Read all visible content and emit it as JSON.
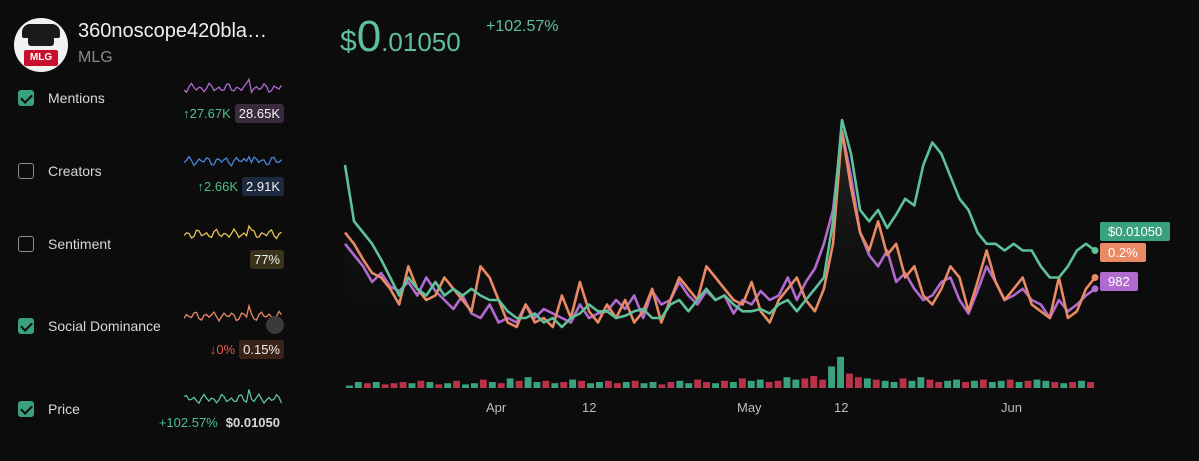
{
  "token": {
    "name": "360noscope420bla…",
    "ticker": "MLG",
    "logo_text": "MLG"
  },
  "price_header": {
    "dollar": "$",
    "int": "0",
    "frac": ".01050",
    "change": "+102.57%"
  },
  "metrics": [
    {
      "label": "Mentions",
      "checked": true,
      "change": "↑27.67K",
      "change_dir": "up",
      "value": "28.65K",
      "pill_color": "#3a2a3d",
      "spark_color": "#b06ad0"
    },
    {
      "label": "Creators",
      "checked": false,
      "change": "↑2.66K",
      "change_dir": "up",
      "value": "2.91K",
      "pill_color": "#1c2a3f",
      "spark_color": "#4a86d8"
    },
    {
      "label": "Sentiment",
      "checked": false,
      "change": "",
      "change_dir": "",
      "value": "77%",
      "pill_color": "#3a3219",
      "spark_color": "#e8c15a"
    },
    {
      "label": "Social Dominance",
      "checked": true,
      "change": "↓0%",
      "change_dir": "down",
      "value": "0.15%",
      "pill_color": "#3a2419",
      "spark_color": "#ea8a64"
    },
    {
      "label": "Price",
      "checked": true,
      "change": "+102.57%",
      "change_dir": "up",
      "value": "$0.01050",
      "pill_color": "transparent",
      "spark_color": "#5ec19a"
    }
  ],
  "chart_data": {
    "type": "line",
    "x_tick_labels": [
      "Apr",
      "12",
      "May",
      "12",
      "Jun"
    ],
    "series": [
      {
        "name": "Price",
        "color": "#5ec19a",
        "last_label": "$0.01050",
        "values": [
          0.8,
          0.55,
          0.5,
          0.45,
          0.38,
          0.3,
          0.22,
          0.3,
          0.25,
          0.22,
          0.28,
          0.22,
          0.25,
          0.22,
          0.25,
          0.22,
          0.2,
          0.2,
          0.15,
          0.12,
          0.12,
          0.14,
          0.1,
          0.12,
          0.08,
          0.12,
          0.14,
          0.18,
          0.15,
          0.15,
          0.12,
          0.13,
          0.15,
          0.16,
          0.12,
          0.12,
          0.18,
          0.2,
          0.15,
          0.2,
          0.25,
          0.2,
          0.22,
          0.18,
          0.15,
          0.15,
          0.16,
          0.14,
          0.18,
          0.2,
          0.15,
          0.2,
          0.25,
          0.3,
          0.55,
          1.0,
          0.85,
          0.6,
          0.55,
          0.6,
          0.52,
          0.58,
          0.65,
          0.62,
          0.8,
          0.9,
          0.85,
          0.75,
          0.65,
          0.6,
          0.5,
          0.45,
          0.45,
          0.42,
          0.45,
          0.42,
          0.42,
          0.35,
          0.3,
          0.3,
          0.35,
          0.42,
          0.45,
          0.42
        ]
      },
      {
        "name": "Social Dominance",
        "color": "#ea8a64",
        "last_label": "0.2%",
        "values": [
          0.5,
          0.45,
          0.38,
          0.32,
          0.3,
          0.25,
          0.18,
          0.35,
          0.25,
          0.2,
          0.22,
          0.3,
          0.25,
          0.2,
          0.15,
          0.35,
          0.3,
          0.2,
          0.1,
          0.08,
          0.18,
          0.1,
          0.12,
          0.08,
          0.22,
          0.12,
          0.28,
          0.15,
          0.1,
          0.18,
          0.12,
          0.2,
          0.1,
          0.15,
          0.25,
          0.1,
          0.2,
          0.3,
          0.25,
          0.2,
          0.35,
          0.3,
          0.25,
          0.2,
          0.18,
          0.28,
          0.15,
          0.1,
          0.2,
          0.25,
          0.3,
          0.2,
          0.15,
          0.25,
          0.45,
          0.95,
          0.7,
          0.5,
          0.42,
          0.55,
          0.4,
          0.45,
          0.3,
          0.35,
          0.22,
          0.18,
          0.25,
          0.35,
          0.3,
          0.15,
          0.28,
          0.42,
          0.28,
          0.2,
          0.25,
          0.3,
          0.18,
          0.15,
          0.12,
          0.3,
          0.12,
          0.15,
          0.25,
          0.3
        ]
      },
      {
        "name": "Mentions",
        "color": "#b06ad0",
        "last_label": "982",
        "values": [
          0.45,
          0.4,
          0.35,
          0.28,
          0.32,
          0.26,
          0.24,
          0.28,
          0.22,
          0.3,
          0.24,
          0.2,
          0.16,
          0.22,
          0.14,
          0.12,
          0.18,
          0.1,
          0.12,
          0.1,
          0.18,
          0.12,
          0.16,
          0.14,
          0.12,
          0.1,
          0.18,
          0.12,
          0.14,
          0.15,
          0.2,
          0.16,
          0.22,
          0.12,
          0.24,
          0.18,
          0.2,
          0.28,
          0.22,
          0.18,
          0.24,
          0.2,
          0.22,
          0.14,
          0.2,
          0.18,
          0.24,
          0.2,
          0.22,
          0.3,
          0.2,
          0.28,
          0.34,
          0.45,
          0.6,
          0.95,
          0.75,
          0.5,
          0.4,
          0.35,
          0.42,
          0.28,
          0.32,
          0.25,
          0.2,
          0.22,
          0.28,
          0.3,
          0.2,
          0.14,
          0.24,
          0.35,
          0.28,
          0.2,
          0.22,
          0.25,
          0.2,
          0.18,
          0.12,
          0.2,
          0.15,
          0.18,
          0.22,
          0.25
        ]
      }
    ],
    "volume_bars": {
      "colors": [
        "#3aa17e",
        "#b8324a"
      ],
      "values": [
        0.2,
        0.5,
        0.4,
        0.5,
        0.3,
        0.4,
        0.5,
        0.4,
        0.6,
        0.5,
        0.3,
        0.4,
        0.6,
        0.3,
        0.4,
        0.7,
        0.5,
        0.4,
        0.8,
        0.6,
        0.9,
        0.5,
        0.6,
        0.4,
        0.5,
        0.7,
        0.6,
        0.4,
        0.5,
        0.6,
        0.4,
        0.5,
        0.6,
        0.4,
        0.5,
        0.3,
        0.5,
        0.6,
        0.4,
        0.7,
        0.5,
        0.4,
        0.6,
        0.5,
        0.8,
        0.6,
        0.7,
        0.5,
        0.6,
        0.9,
        0.7,
        0.8,
        1.0,
        0.7,
        1.8,
        2.6,
        1.2,
        0.9,
        0.8,
        0.7,
        0.6,
        0.5,
        0.8,
        0.6,
        0.9,
        0.7,
        0.5,
        0.6,
        0.7,
        0.5,
        0.6,
        0.7,
        0.5,
        0.6,
        0.7,
        0.5,
        0.6,
        0.7,
        0.6,
        0.5,
        0.4,
        0.5,
        0.6,
        0.5
      ],
      "up": [
        1,
        1,
        0,
        1,
        0,
        0,
        0,
        1,
        0,
        1,
        0,
        1,
        0,
        1,
        1,
        0,
        1,
        0,
        1,
        0,
        1,
        1,
        0,
        1,
        0,
        1,
        0,
        1,
        1,
        0,
        0,
        1,
        0,
        1,
        1,
        0,
        0,
        1,
        1,
        0,
        0,
        1,
        0,
        1,
        0,
        1,
        1,
        0,
        0,
        1,
        1,
        0,
        0,
        0,
        1,
        1,
        0,
        0,
        1,
        0,
        1,
        1,
        0,
        1,
        1,
        0,
        0,
        1,
        1,
        0,
        1,
        0,
        1,
        1,
        0,
        1,
        0,
        1,
        1,
        0,
        1,
        0,
        1,
        0
      ]
    }
  }
}
